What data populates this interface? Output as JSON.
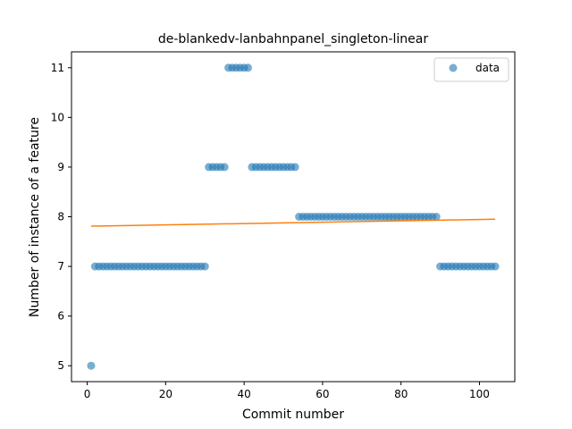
{
  "chart_data": {
    "type": "scatter",
    "title": "de-blankedv-lanbahnpanel_singleton-linear",
    "xlabel": "Commit number",
    "ylabel": "Number of instance of a feature",
    "xlim": [
      -4,
      109
    ],
    "ylim": [
      4.68,
      11.32
    ],
    "xticks": [
      0,
      20,
      40,
      60,
      80,
      100
    ],
    "yticks": [
      5,
      6,
      7,
      8,
      9,
      10,
      11
    ],
    "grid": false,
    "legend_position": "top-right",
    "series": [
      {
        "name": "data",
        "kind": "points",
        "color": "#1f77b4",
        "x": [
          1,
          2,
          3,
          4,
          5,
          6,
          7,
          8,
          9,
          10,
          11,
          12,
          13,
          14,
          15,
          16,
          17,
          18,
          19,
          20,
          21,
          22,
          23,
          24,
          25,
          26,
          27,
          28,
          29,
          30,
          31,
          32,
          33,
          34,
          35,
          36,
          37,
          38,
          39,
          40,
          41,
          42,
          43,
          44,
          45,
          46,
          47,
          48,
          49,
          50,
          51,
          52,
          53,
          54,
          55,
          56,
          57,
          58,
          59,
          60,
          61,
          62,
          63,
          64,
          65,
          66,
          67,
          68,
          69,
          70,
          71,
          72,
          73,
          74,
          75,
          76,
          77,
          78,
          79,
          80,
          81,
          82,
          83,
          84,
          85,
          86,
          87,
          88,
          89,
          90,
          91,
          92,
          93,
          94,
          95,
          96,
          97,
          98,
          99,
          100,
          101,
          102,
          103,
          104
        ],
        "y": [
          5,
          7,
          7,
          7,
          7,
          7,
          7,
          7,
          7,
          7,
          7,
          7,
          7,
          7,
          7,
          7,
          7,
          7,
          7,
          7,
          7,
          7,
          7,
          7,
          7,
          7,
          7,
          7,
          7,
          7,
          9,
          9,
          9,
          9,
          9,
          11,
          11,
          11,
          11,
          11,
          11,
          9,
          9,
          9,
          9,
          9,
          9,
          9,
          9,
          9,
          9,
          9,
          9,
          8,
          8,
          8,
          8,
          8,
          8,
          8,
          8,
          8,
          8,
          8,
          8,
          8,
          8,
          8,
          8,
          8,
          8,
          8,
          8,
          8,
          8,
          8,
          8,
          8,
          8,
          8,
          8,
          8,
          8,
          8,
          8,
          8,
          8,
          8,
          8,
          7,
          7,
          7,
          7,
          7,
          7,
          7,
          7,
          7,
          7,
          7,
          7,
          7,
          7,
          7
        ]
      },
      {
        "name": "",
        "kind": "line",
        "color": "#ff7f0e",
        "x": [
          1,
          104
        ],
        "y": [
          7.81,
          7.95
        ]
      }
    ]
  }
}
